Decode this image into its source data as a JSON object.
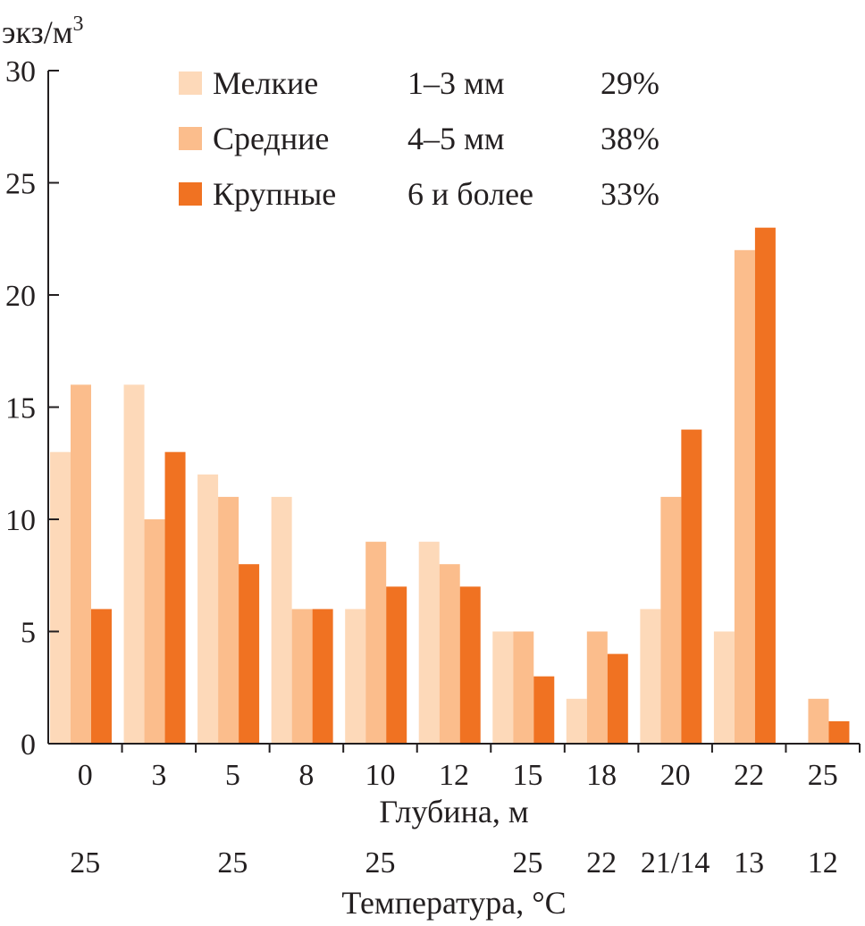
{
  "chart_data": {
    "type": "bar",
    "ylabel": "экз/м",
    "ylabel_sup": "3",
    "xlabel": "Глубина, м",
    "ylim": [
      0,
      30
    ],
    "yticks": [
      0,
      5,
      10,
      15,
      20,
      25,
      30
    ],
    "categories": [
      "0",
      "3",
      "5",
      "8",
      "10",
      "12",
      "15",
      "18",
      "20",
      "22",
      "25"
    ],
    "series": [
      {
        "name": "Мелкие",
        "size": "1–3 мм",
        "share": "29%",
        "color": "#fdd9b9",
        "values": [
          13,
          16,
          12,
          11,
          6,
          9,
          5,
          2,
          6,
          5,
          0
        ]
      },
      {
        "name": "Средние",
        "size": "4–5 мм",
        "share": "38%",
        "color": "#fbbd8c",
        "values": [
          16,
          10,
          11,
          6,
          9,
          8,
          5,
          5,
          11,
          22,
          2
        ]
      },
      {
        "name": "Крупные",
        "size": "6 и более",
        "share": "33%",
        "color": "#f07222",
        "values": [
          6,
          13,
          8,
          6,
          7,
          7,
          3,
          4,
          14,
          23,
          1
        ]
      }
    ],
    "temperature": {
      "label": "Температура, °С",
      "values": [
        "25",
        "",
        "25",
        "",
        "25",
        "",
        "25",
        "22",
        "21/14",
        "13",
        "12"
      ]
    },
    "legend_position": "top-center",
    "grid": false
  }
}
